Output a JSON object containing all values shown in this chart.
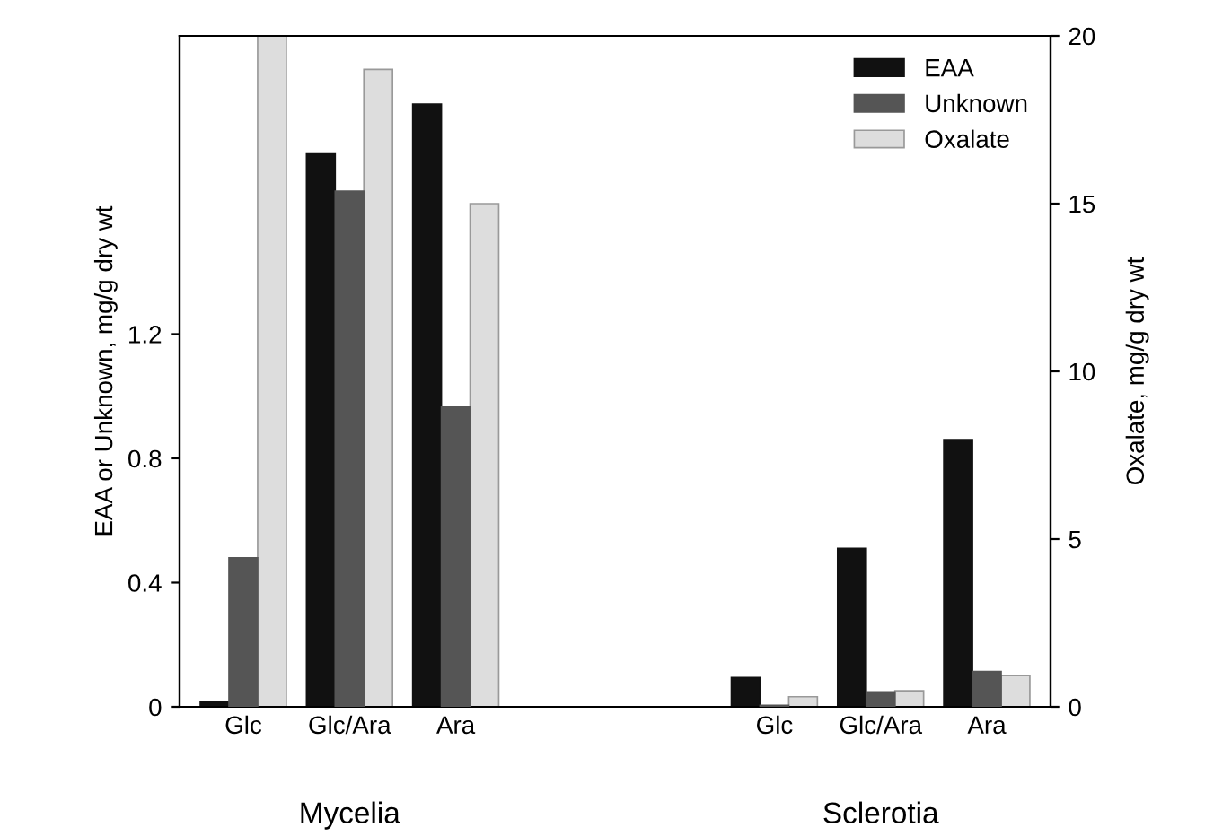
{
  "chart_data": {
    "type": "bar",
    "categories": [
      "Glc",
      "Glc/Ara",
      "Ara",
      null,
      null,
      "Glc",
      "Glc/Ara",
      "Ara"
    ],
    "series": [
      {
        "name": "EAA",
        "color": "#111111",
        "values": [
          0.015,
          1.78,
          1.94,
          null,
          null,
          0.094,
          0.51,
          0.86
        ]
      },
      {
        "name": "Unknown",
        "color": "#555555",
        "values": [
          0.48,
          1.66,
          0.965,
          null,
          null,
          0.005,
          0.048,
          0.114
        ]
      },
      {
        "name": "Oxalate",
        "color": "#dddddd",
        "axis": "y2",
        "values": [
          20,
          19.0,
          15.0,
          null,
          null,
          0.3,
          0.48,
          0.93
        ]
      }
    ],
    "ylabel": "EAA or Unknown, mg/g dry wt",
    "y2label": "Oxalate, mg/g dry wt",
    "ylim": [
      0,
      2.16
    ],
    "yticks": [
      0,
      0.4,
      0.8,
      1.2
    ],
    "y2lim": [
      0,
      20
    ],
    "y2ticks": [
      0,
      5,
      10,
      15,
      20
    ],
    "annotations": [
      "Mycelia",
      "Sclerotia"
    ],
    "legend": "top right",
    "grid": false
  }
}
